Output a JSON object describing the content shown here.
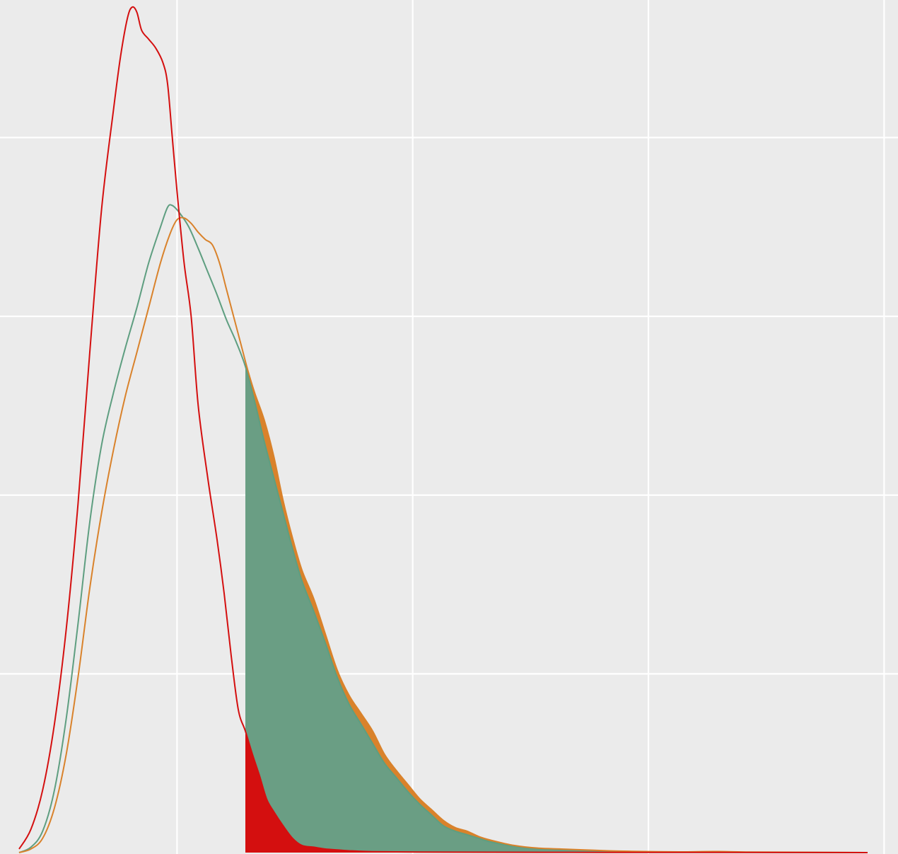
{
  "chart_data": {
    "type": "area",
    "title": "",
    "xlabel": "",
    "ylabel": "",
    "xlim": [
      0,
      3.7
    ],
    "ylim": [
      0,
      4.75
    ],
    "x_grid": [
      0.67,
      1.67,
      2.67,
      3.67
    ],
    "y_grid": [
      1.0,
      2.0,
      3.0,
      4.0
    ],
    "grid": true,
    "background": "#ebebeb",
    "threshold_x": 0.96,
    "series": [
      {
        "color": "#d40f0f",
        "fill_color": "#d40f0f",
        "points": [
          [
            0.0,
            0.02
          ],
          [
            0.05,
            0.13
          ],
          [
            0.1,
            0.35
          ],
          [
            0.15,
            0.72
          ],
          [
            0.2,
            1.25
          ],
          [
            0.25,
            1.95
          ],
          [
            0.3,
            2.8
          ],
          [
            0.35,
            3.6
          ],
          [
            0.4,
            4.15
          ],
          [
            0.43,
            4.45
          ],
          [
            0.46,
            4.67
          ],
          [
            0.48,
            4.73
          ],
          [
            0.5,
            4.7
          ],
          [
            0.52,
            4.6
          ],
          [
            0.55,
            4.55
          ],
          [
            0.58,
            4.5
          ],
          [
            0.61,
            4.42
          ],
          [
            0.63,
            4.3
          ],
          [
            0.65,
            4.0
          ],
          [
            0.67,
            3.7
          ],
          [
            0.7,
            3.3
          ],
          [
            0.73,
            3.0
          ],
          [
            0.76,
            2.5
          ],
          [
            0.8,
            2.1
          ],
          [
            0.84,
            1.75
          ],
          [
            0.87,
            1.45
          ],
          [
            0.9,
            1.1
          ],
          [
            0.93,
            0.8
          ],
          [
            0.96,
            0.68
          ],
          [
            0.99,
            0.55
          ],
          [
            1.02,
            0.43
          ],
          [
            1.05,
            0.3
          ],
          [
            1.08,
            0.23
          ],
          [
            1.12,
            0.15
          ],
          [
            1.16,
            0.08
          ],
          [
            1.2,
            0.04
          ],
          [
            1.25,
            0.03
          ],
          [
            1.3,
            0.02
          ],
          [
            1.35,
            0.015
          ],
          [
            1.4,
            0.01
          ],
          [
            1.5,
            0.005
          ],
          [
            1.7,
            0.003
          ],
          [
            2.0,
            0.002
          ],
          [
            2.5,
            0.001
          ],
          [
            3.0,
            0.001
          ],
          [
            3.6,
            0.0
          ]
        ]
      },
      {
        "color": "#d9822b",
        "fill_color": "#d9822b",
        "points": [
          [
            0.0,
            0.0
          ],
          [
            0.05,
            0.02
          ],
          [
            0.1,
            0.08
          ],
          [
            0.15,
            0.25
          ],
          [
            0.2,
            0.55
          ],
          [
            0.25,
            0.98
          ],
          [
            0.3,
            1.48
          ],
          [
            0.35,
            1.9
          ],
          [
            0.4,
            2.25
          ],
          [
            0.45,
            2.55
          ],
          [
            0.5,
            2.8
          ],
          [
            0.55,
            3.05
          ],
          [
            0.6,
            3.3
          ],
          [
            0.64,
            3.46
          ],
          [
            0.67,
            3.54
          ],
          [
            0.7,
            3.55
          ],
          [
            0.73,
            3.52
          ],
          [
            0.76,
            3.47
          ],
          [
            0.79,
            3.43
          ],
          [
            0.82,
            3.4
          ],
          [
            0.85,
            3.3
          ],
          [
            0.88,
            3.15
          ],
          [
            0.91,
            3.0
          ],
          [
            0.94,
            2.85
          ],
          [
            0.97,
            2.7
          ],
          [
            1.0,
            2.57
          ],
          [
            1.04,
            2.42
          ],
          [
            1.08,
            2.22
          ],
          [
            1.12,
            1.97
          ],
          [
            1.16,
            1.76
          ],
          [
            1.2,
            1.58
          ],
          [
            1.25,
            1.42
          ],
          [
            1.3,
            1.22
          ],
          [
            1.35,
            1.02
          ],
          [
            1.4,
            0.88
          ],
          [
            1.45,
            0.78
          ],
          [
            1.5,
            0.68
          ],
          [
            1.55,
            0.55
          ],
          [
            1.6,
            0.46
          ],
          [
            1.65,
            0.38
          ],
          [
            1.7,
            0.3
          ],
          [
            1.75,
            0.24
          ],
          [
            1.8,
            0.18
          ],
          [
            1.85,
            0.14
          ],
          [
            1.9,
            0.12
          ],
          [
            1.95,
            0.09
          ],
          [
            2.0,
            0.07
          ],
          [
            2.1,
            0.04
          ],
          [
            2.2,
            0.025
          ],
          [
            2.3,
            0.02
          ],
          [
            2.4,
            0.015
          ],
          [
            2.5,
            0.01
          ],
          [
            2.6,
            0.007
          ],
          [
            2.8,
            0.004
          ],
          [
            2.95,
            0.006
          ],
          [
            3.1,
            0.003
          ],
          [
            3.3,
            0.002
          ],
          [
            3.6,
            0.0
          ]
        ]
      },
      {
        "color": "#5e9e80",
        "fill_color": "#6a9e84",
        "points": [
          [
            0.0,
            0.0
          ],
          [
            0.05,
            0.03
          ],
          [
            0.1,
            0.12
          ],
          [
            0.15,
            0.35
          ],
          [
            0.2,
            0.75
          ],
          [
            0.25,
            1.28
          ],
          [
            0.3,
            1.85
          ],
          [
            0.35,
            2.28
          ],
          [
            0.4,
            2.57
          ],
          [
            0.45,
            2.82
          ],
          [
            0.5,
            3.05
          ],
          [
            0.55,
            3.3
          ],
          [
            0.6,
            3.5
          ],
          [
            0.63,
            3.61
          ],
          [
            0.65,
            3.62
          ],
          [
            0.68,
            3.58
          ],
          [
            0.72,
            3.5
          ],
          [
            0.76,
            3.38
          ],
          [
            0.8,
            3.25
          ],
          [
            0.84,
            3.12
          ],
          [
            0.88,
            2.98
          ],
          [
            0.92,
            2.86
          ],
          [
            0.96,
            2.72
          ],
          [
            1.0,
            2.52
          ],
          [
            1.04,
            2.3
          ],
          [
            1.08,
            2.1
          ],
          [
            1.12,
            1.9
          ],
          [
            1.16,
            1.7
          ],
          [
            1.2,
            1.52
          ],
          [
            1.25,
            1.35
          ],
          [
            1.3,
            1.17
          ],
          [
            1.35,
            0.98
          ],
          [
            1.4,
            0.83
          ],
          [
            1.45,
            0.72
          ],
          [
            1.5,
            0.61
          ],
          [
            1.55,
            0.5
          ],
          [
            1.6,
            0.42
          ],
          [
            1.65,
            0.34
          ],
          [
            1.7,
            0.27
          ],
          [
            1.75,
            0.21
          ],
          [
            1.8,
            0.15
          ],
          [
            1.85,
            0.12
          ],
          [
            1.9,
            0.1
          ],
          [
            1.95,
            0.08
          ],
          [
            2.0,
            0.06
          ],
          [
            2.1,
            0.035
          ],
          [
            2.2,
            0.022
          ],
          [
            2.3,
            0.016
          ],
          [
            2.4,
            0.012
          ],
          [
            2.5,
            0.008
          ],
          [
            2.6,
            0.005
          ],
          [
            2.8,
            0.003
          ],
          [
            3.0,
            0.002
          ],
          [
            3.3,
            0.001
          ],
          [
            3.6,
            0.0
          ]
        ]
      }
    ]
  }
}
